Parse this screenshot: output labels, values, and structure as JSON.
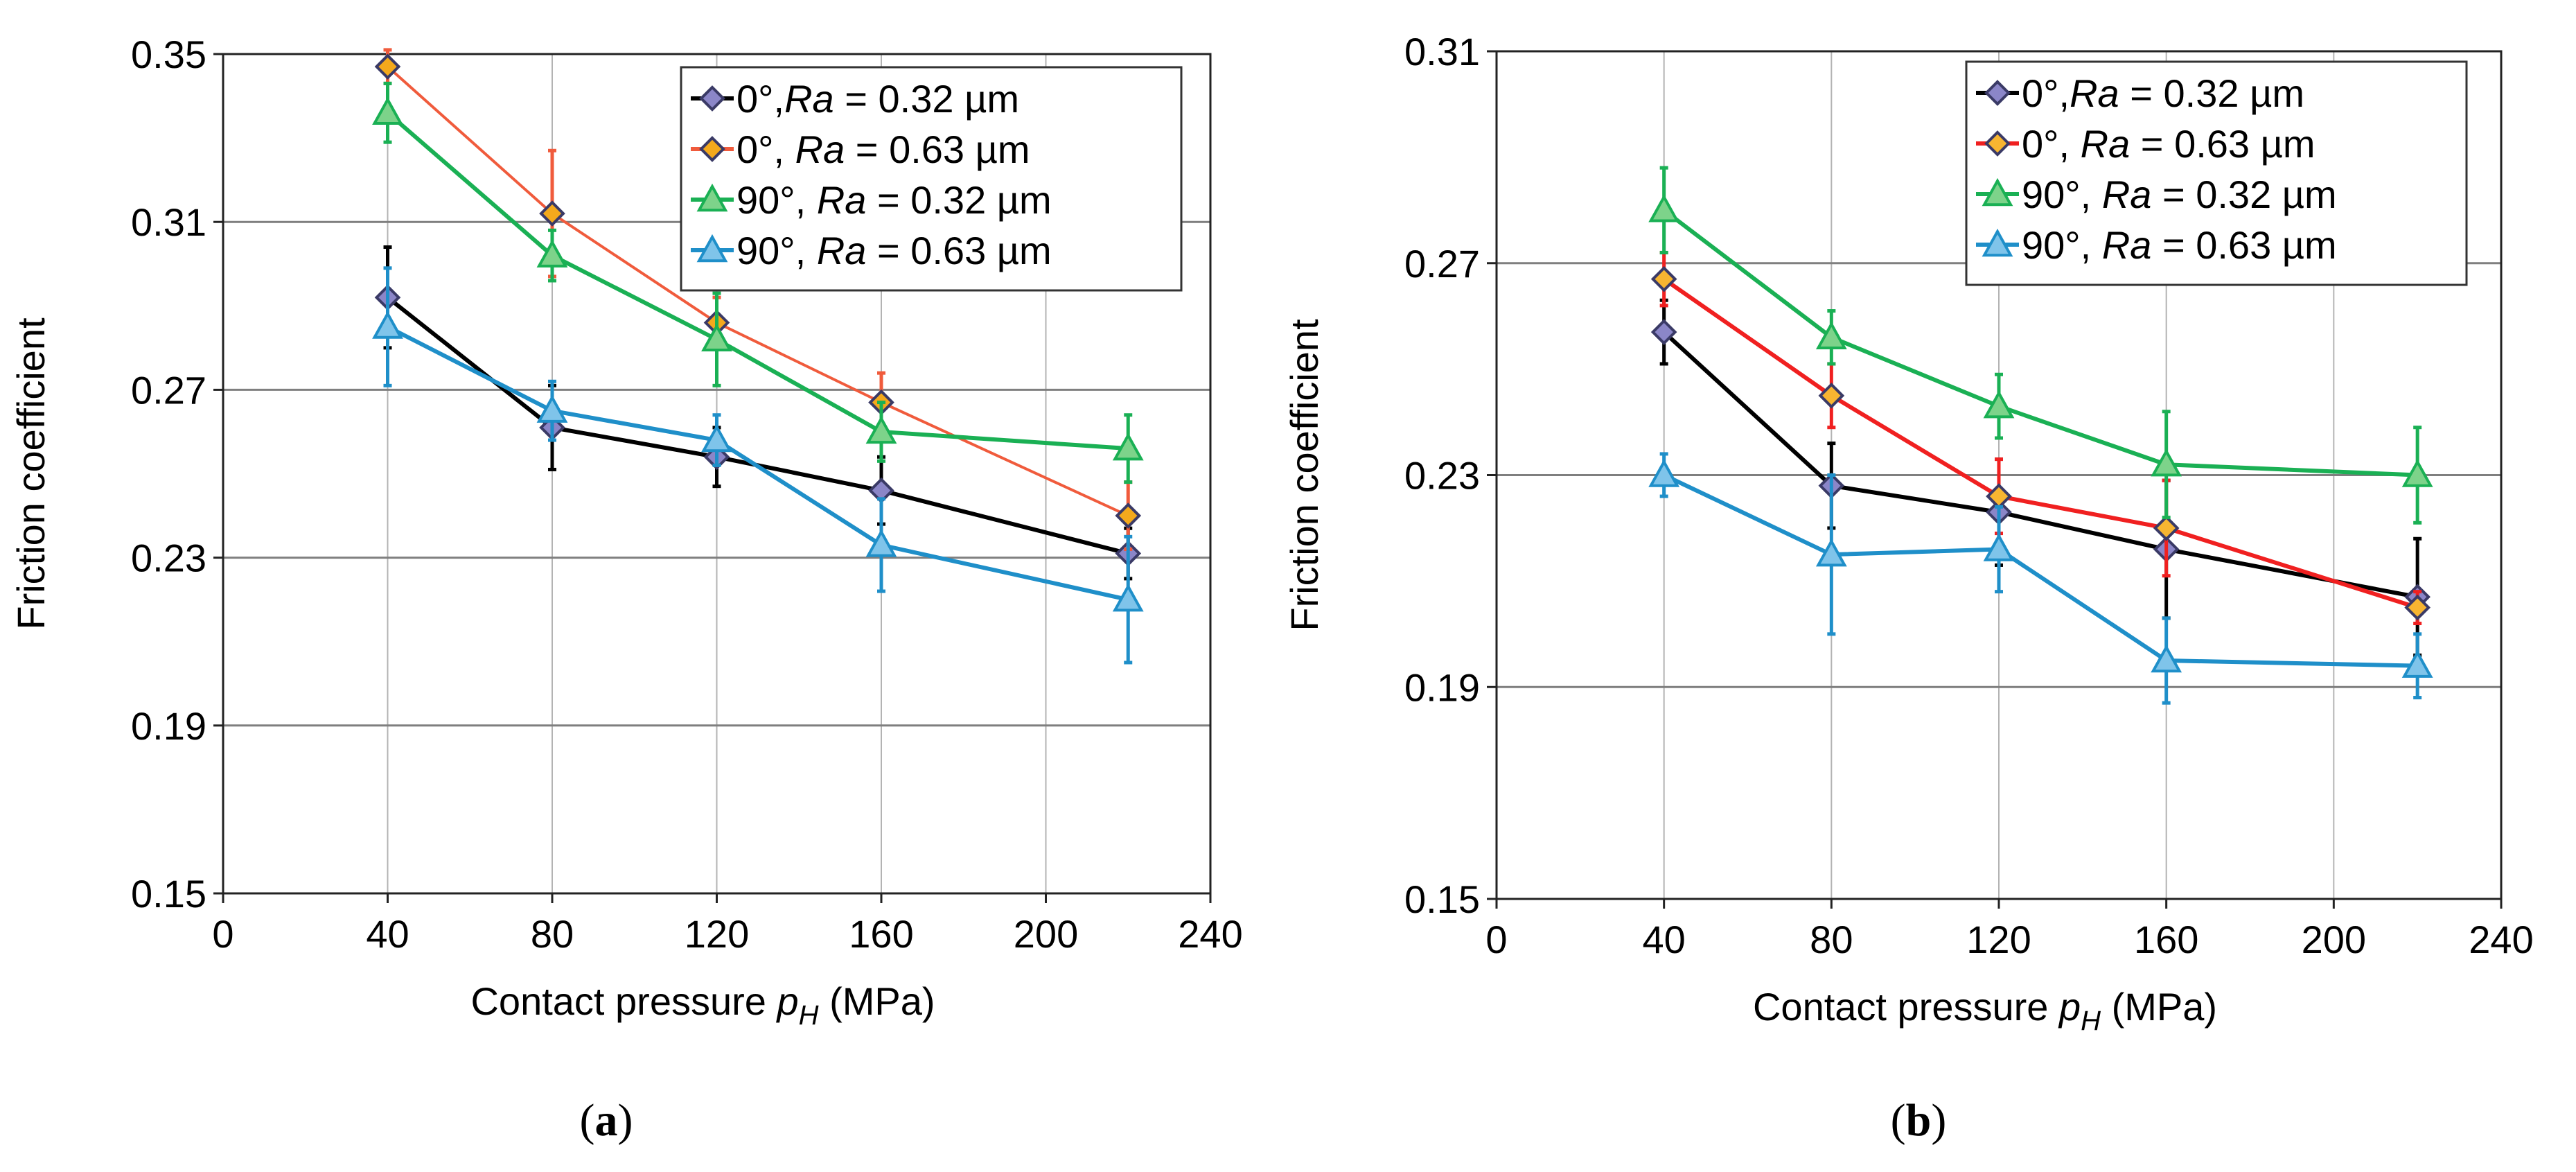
{
  "chart_data": [
    {
      "type": "line",
      "panel": "a",
      "caption": {
        "open": "(",
        "letter": "a",
        "close": ")"
      },
      "xlabel": {
        "text": "Contact pressure ",
        "var": "p",
        "sub": "H",
        "unit": " (MPa)"
      },
      "ylabel": "Friction coefficient",
      "xlim": [
        0,
        240
      ],
      "ylim": [
        0.15,
        0.35
      ],
      "xticks": [
        "0",
        "40",
        "80",
        "120",
        "160",
        "200",
        "240"
      ],
      "yticks": [
        "0.15",
        "0.19",
        "0.23",
        "0.27",
        "0.31",
        "0.35"
      ],
      "grid": true,
      "legend_position": "top-right",
      "series": [
        {
          "name": "0°, Ra = 0.32 µm",
          "angle": "0°,",
          "ra_label": "Ra",
          "ra_value": " = 0.32 µm",
          "marker": "diamond",
          "color": "#000000",
          "fill": "#8b86c8",
          "x": [
            40,
            80,
            120,
            160,
            220
          ],
          "y": [
            0.292,
            0.261,
            0.254,
            0.246,
            0.231
          ],
          "err": [
            0.012,
            0.01,
            0.007,
            0.008,
            0.006
          ]
        },
        {
          "name": "0°, Ra = 0.63 µm",
          "angle": "0°, ",
          "ra_label": "Ra",
          "ra_value": " = 0.63 µm",
          "marker": "diamond",
          "color": "#f05b3c",
          "fill": "#f4a91c",
          "x": [
            40,
            80,
            120,
            160,
            220
          ],
          "y": [
            0.347,
            0.312,
            0.286,
            0.267,
            0.24
          ],
          "err": [
            0.004,
            0.015,
            0.006,
            0.007,
            0.008
          ]
        },
        {
          "name": "90°, Ra = 0.32 µm",
          "angle": "90°, ",
          "ra_label": "Ra",
          "ra_value": " = 0.32 µm",
          "marker": "triangle",
          "color": "#1ab054",
          "fill": "#7dd38a",
          "x": [
            40,
            80,
            120,
            160,
            220
          ],
          "y": [
            0.336,
            0.302,
            0.282,
            0.26,
            0.256
          ],
          "err": [
            0.007,
            0.006,
            0.011,
            0.007,
            0.008
          ]
        },
        {
          "name": "90°, Ra = 0.63 µm",
          "angle": "90°, ",
          "ra_label": "Ra",
          "ra_value": " = 0.63 µm",
          "marker": "triangle",
          "color": "#1f8fc9",
          "fill": "#7fc4ea",
          "x": [
            40,
            80,
            120,
            160,
            220
          ],
          "y": [
            0.285,
            0.265,
            0.258,
            0.233,
            0.22
          ],
          "err": [
            0.014,
            0.007,
            0.006,
            0.011,
            0.015
          ]
        }
      ]
    },
    {
      "type": "line",
      "panel": "b",
      "caption": {
        "open": "(",
        "letter": "b",
        "close": ")"
      },
      "xlabel": {
        "text": "Contact pressure ",
        "var": "p",
        "sub": "H",
        "unit": " (MPa)"
      },
      "ylabel": "Friction coefficient",
      "xlim": [
        0,
        240
      ],
      "ylim": [
        0.15,
        0.31
      ],
      "xticks": [
        "0",
        "40",
        "80",
        "120",
        "160",
        "200",
        "240"
      ],
      "yticks": [
        "0.15",
        "0.19",
        "0.23",
        "0.27",
        "0.31"
      ],
      "grid": true,
      "legend_position": "top-right",
      "series": [
        {
          "name": "0°, Ra = 0.32 µm",
          "angle": "0°,",
          "ra_label": "Ra",
          "ra_value": " = 0.32 µm",
          "marker": "diamond",
          "color": "#000000",
          "fill": "#8b86c8",
          "x": [
            40,
            80,
            120,
            160,
            220
          ],
          "y": [
            0.257,
            0.228,
            0.223,
            0.216,
            0.207
          ],
          "err": [
            0.006,
            0.008,
            0.01,
            0.013,
            0.011
          ]
        },
        {
          "name": "0°, Ra = 0.63 µm",
          "angle": "0°, ",
          "ra_label": "Ra",
          "ra_value": " = 0.63 µm",
          "marker": "diamond",
          "color": "#f02020",
          "fill": "#f7b531",
          "x": [
            40,
            80,
            120,
            160,
            220
          ],
          "y": [
            0.267,
            0.245,
            0.226,
            0.22,
            0.205
          ],
          "err": [
            0.005,
            0.006,
            0.007,
            0.009,
            0.003
          ]
        },
        {
          "name": "90°, Ra = 0.32 µm",
          "angle": "90°, ",
          "ra_label": "Ra",
          "ra_value": " = 0.32 µm",
          "marker": "triangle",
          "color": "#1ab054",
          "fill": "#7dd38a",
          "x": [
            40,
            80,
            120,
            160,
            220
          ],
          "y": [
            0.28,
            0.256,
            0.243,
            0.232,
            0.23
          ],
          "err": [
            0.008,
            0.005,
            0.006,
            0.01,
            0.009
          ]
        },
        {
          "name": "90°, Ra = 0.63 µm",
          "angle": "90°, ",
          "ra_label": "Ra",
          "ra_value": " = 0.63 µm",
          "marker": "triangle",
          "color": "#1f8fc9",
          "fill": "#7fc4ea",
          "x": [
            40,
            80,
            120,
            160,
            220
          ],
          "y": [
            0.23,
            0.215,
            0.216,
            0.195,
            0.194
          ],
          "err": [
            0.004,
            0.015,
            0.008,
            0.008,
            0.006
          ]
        }
      ]
    }
  ]
}
